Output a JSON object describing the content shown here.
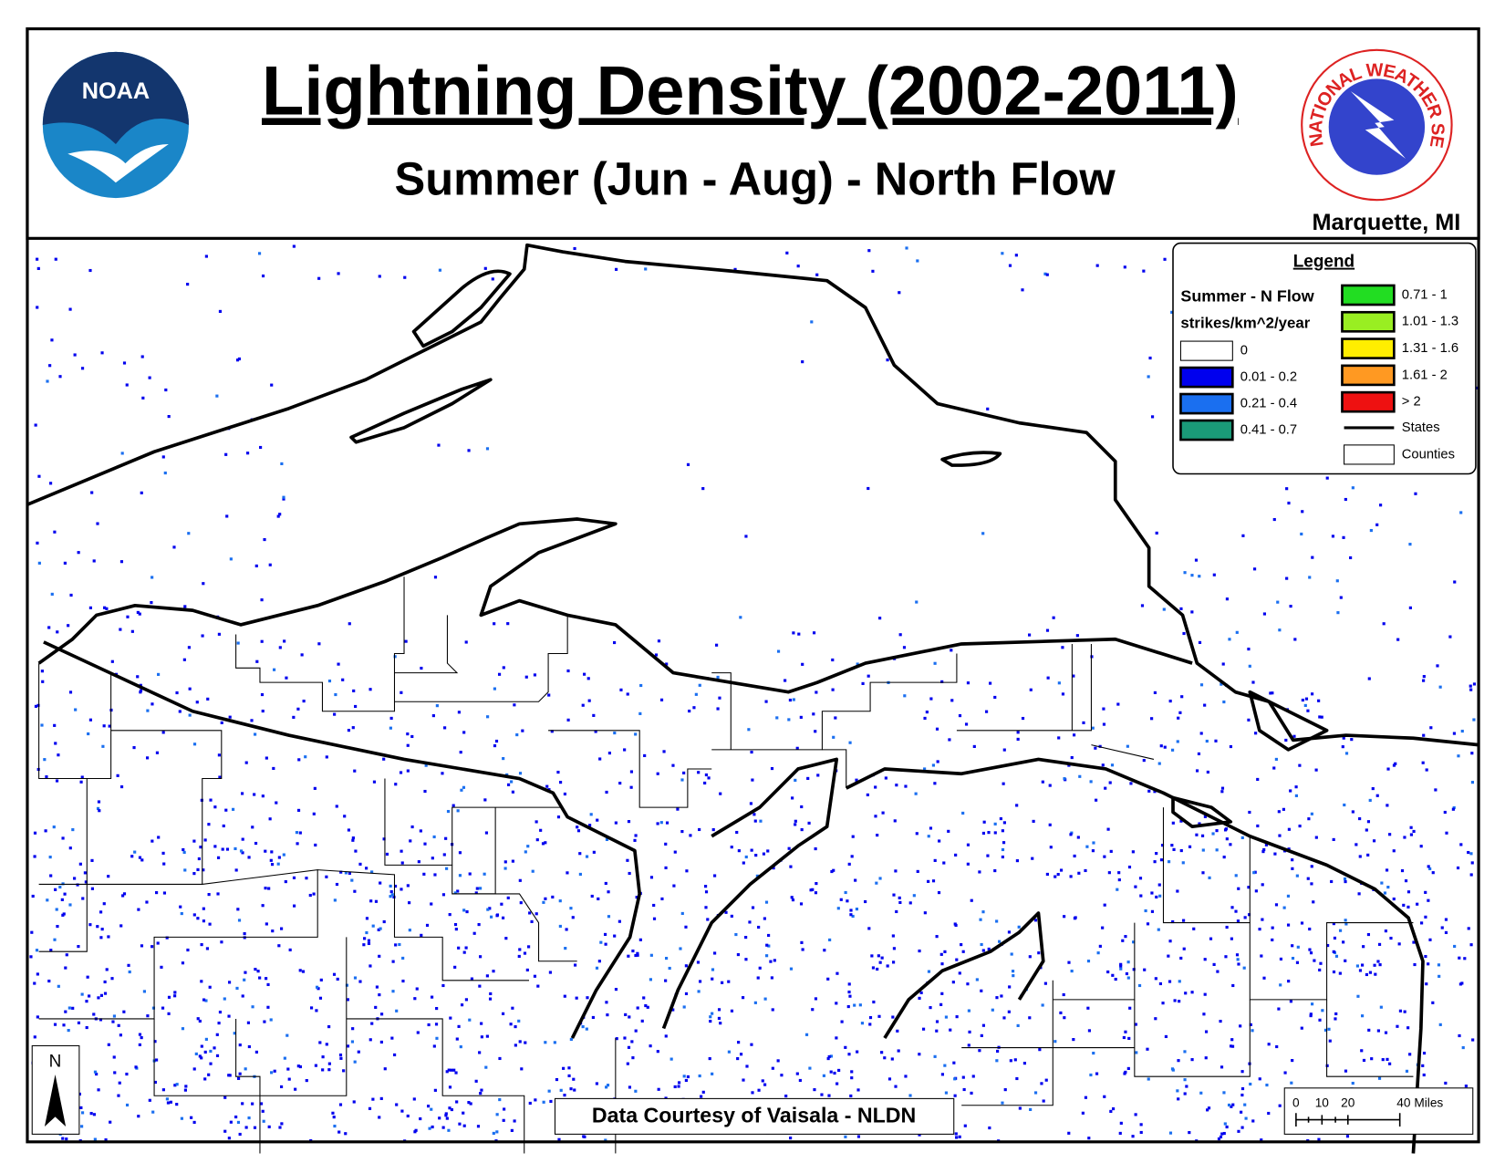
{
  "header": {
    "title": "Lightning Density (2002-2011)",
    "subtitle": "Summer (Jun - Aug) - North Flow",
    "office": "Marquette, MI",
    "noaa_logo": "NOAA",
    "nws_logo": "NATIONAL WEATHER SERVICE"
  },
  "legend": {
    "title": "Legend",
    "heading": "Summer - N Flow",
    "units": "strikes/km^2/year",
    "classes": [
      {
        "label": "0",
        "color": "#ffffff"
      },
      {
        "label": "0.01 - 0.2",
        "color": "#0000ee"
      },
      {
        "label": "0.21 - 0.4",
        "color": "#1a6ff0"
      },
      {
        "label": "0.41 - 0.7",
        "color": "#1a9a78"
      },
      {
        "label": "0.71 - 1",
        "color": "#22dd22"
      },
      {
        "label": "1.01 - 1.3",
        "color": "#99ee22"
      },
      {
        "label": "1.31 - 1.6",
        "color": "#ffee00"
      },
      {
        "label": "1.61 - 2",
        "color": "#ff9922"
      },
      {
        "label": "> 2",
        "color": "#ee1111"
      }
    ],
    "lines": [
      {
        "label": "States"
      },
      {
        "label": "Counties"
      }
    ]
  },
  "north_arrow": "N",
  "scale_bar": {
    "labels": [
      "0",
      "10",
      "20",
      "40 Miles"
    ]
  },
  "credit": "Data Courtesy of Vaisala - NLDN"
}
